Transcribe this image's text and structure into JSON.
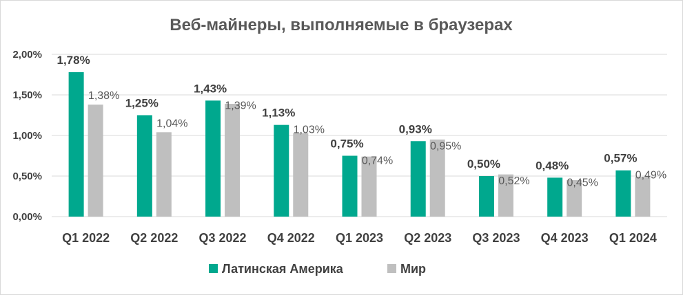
{
  "chart_data": {
    "type": "bar",
    "title": "Веб-майнеры, выполняемые в браузерах",
    "xlabel": "",
    "ylabel": "",
    "categories": [
      "Q1 2022",
      "Q2 2022",
      "Q3 2022",
      "Q4 2022",
      "Q1 2023",
      "Q2 2023",
      "Q3 2023",
      "Q4 2023",
      "Q1 2024"
    ],
    "ylim": [
      0,
      2
    ],
    "yticks": [
      "0,00%",
      "0,50%",
      "1,00%",
      "1,50%",
      "2,00%"
    ],
    "grid": true,
    "legend_position": "bottom",
    "series": [
      {
        "name": "Латинская Америка",
        "color": "#00a88e",
        "values": [
          1.78,
          1.25,
          1.43,
          1.13,
          0.75,
          0.93,
          0.5,
          0.48,
          0.57
        ],
        "labels": [
          "1,78%",
          "1,25%",
          "1,43%",
          "1,13%",
          "0,75%",
          "0,93%",
          "0,50%",
          "0,48%",
          "0,57%"
        ]
      },
      {
        "name": "Мир",
        "color": "#bfbfbf",
        "values": [
          1.38,
          1.04,
          1.39,
          1.03,
          0.74,
          0.95,
          0.52,
          0.45,
          0.49
        ],
        "labels": [
          "1,38%",
          "1,04%",
          "1,39%",
          "1,03%",
          "0,74%",
          "0,95%",
          "0,52%",
          "0,45%",
          "0,49%"
        ]
      }
    ]
  }
}
